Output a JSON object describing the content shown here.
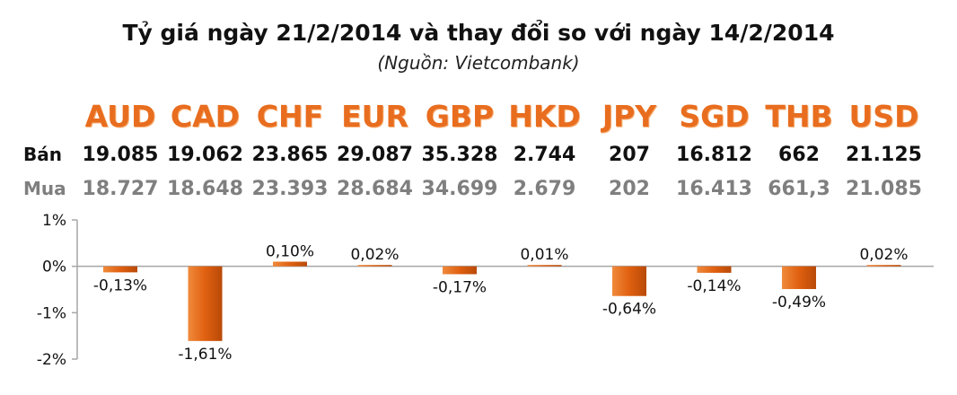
{
  "title": "Tỷ giá ngày 21/2/2014 và thay đổi so với ngày 14/2/2014",
  "subtitle": "(Nguồn: Vietcombank)",
  "rows": {
    "sell_label": "Bán",
    "buy_label": "Mua"
  },
  "currencies": [
    "AUD",
    "CAD",
    "CHF",
    "EUR",
    "GBP",
    "HKD",
    "JPY",
    "SGD",
    "THB",
    "USD"
  ],
  "sell": [
    "19.085",
    "19.062",
    "23.865",
    "29.087",
    "35.328",
    "2.744",
    "207",
    "16.812",
    "662",
    "21.125"
  ],
  "buy": [
    "18.727",
    "18.648",
    "23.393",
    "28.684",
    "34.699",
    "2.679",
    "202",
    "16.413",
    "661,3",
    "21.085"
  ],
  "colors": {
    "currency": "#e86d1f",
    "bar": "#e06010",
    "buy_text": "#7f7f7f",
    "axis": "#a6a6a6"
  },
  "chart_data": {
    "type": "bar",
    "categories": [
      "AUD",
      "CAD",
      "CHF",
      "EUR",
      "GBP",
      "HKD",
      "JPY",
      "SGD",
      "THB",
      "USD"
    ],
    "values": [
      -0.13,
      -1.61,
      0.1,
      0.02,
      -0.17,
      0.01,
      -0.64,
      -0.14,
      -0.49,
      0.02
    ],
    "data_labels": [
      "-0,13%",
      "-1,61%",
      "0,10%",
      "0,02%",
      "-0,17%",
      "0,01%",
      "-0,64%",
      "-0,14%",
      "-0,49%",
      "0,02%"
    ],
    "ylim": [
      -2,
      1
    ],
    "yticks": [
      1,
      0,
      -1,
      -2
    ],
    "ytick_labels": [
      "1%",
      "0%",
      "-1%",
      "-2%"
    ],
    "grid": false,
    "legend": "none"
  }
}
